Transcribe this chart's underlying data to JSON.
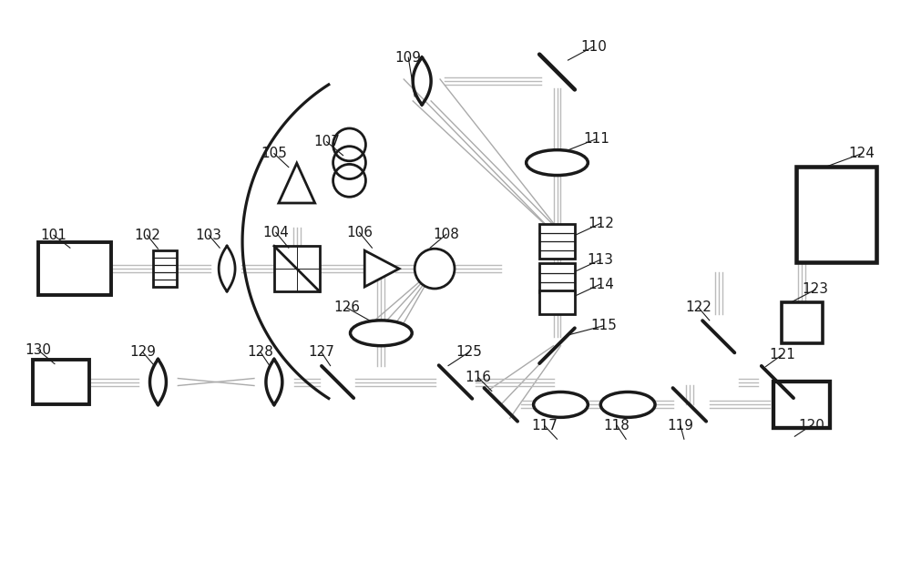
{
  "bg": "#ffffff",
  "lc": "#1a1a1a",
  "bc": "#aaaaaa",
  "lw_thick": 2.8,
  "lw_med": 2.0,
  "lw_thin": 1.2,
  "lw_beam": 1.0
}
